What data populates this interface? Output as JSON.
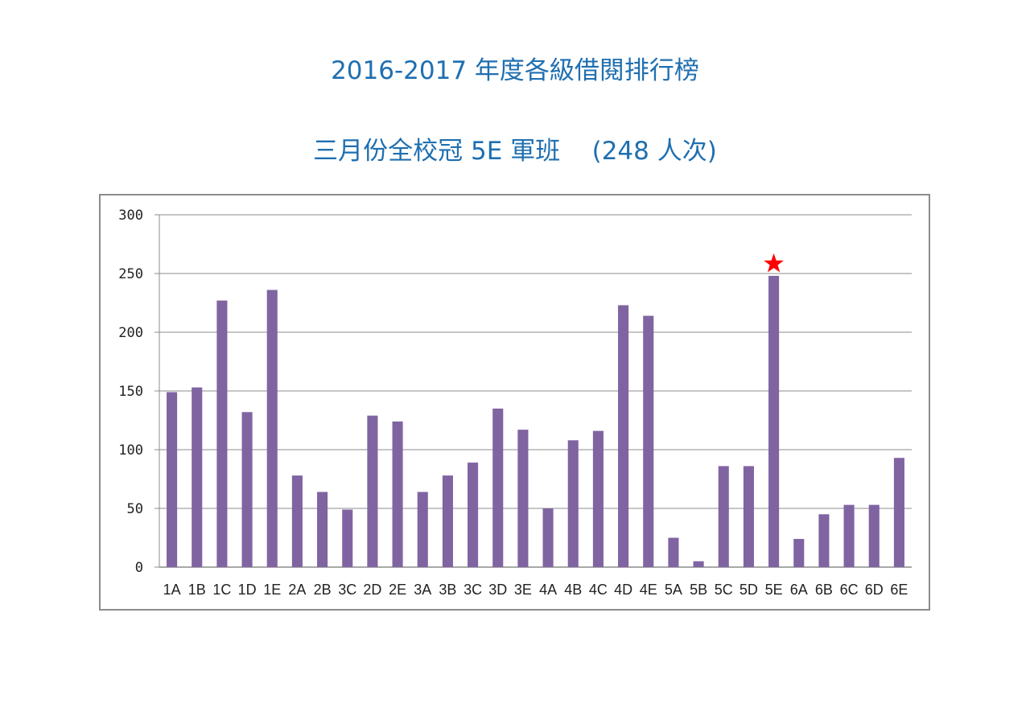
{
  "page": {
    "title": "2016-2017 年度各級借閱排行榜",
    "subtitle": "三月份全校冠 5E 軍班    (248 人次)",
    "title_color": "#1f6fb0"
  },
  "chart_data": {
    "type": "bar",
    "title": "",
    "xlabel": "",
    "ylabel": "",
    "ylim": [
      0,
      300
    ],
    "yticks": [
      0,
      50,
      100,
      150,
      200,
      250,
      300
    ],
    "grid": true,
    "legend": "none",
    "bar_color": "#8064a2",
    "grid_color": "#8c8c8c",
    "highlight": {
      "category": "5E",
      "marker": "star-icon",
      "color": "#ff0000"
    },
    "categories": [
      "1A",
      "1B",
      "1C",
      "1D",
      "1E",
      "2A",
      "2B",
      "3C",
      "2D",
      "2E",
      "3A",
      "3B",
      "3C",
      "3D",
      "3E",
      "4A",
      "4B",
      "4C",
      "4D",
      "4E",
      "5A",
      "5B",
      "5C",
      "5D",
      "5E",
      "6A",
      "6B",
      "6C",
      "6D",
      "6E"
    ],
    "values": [
      149,
      153,
      227,
      132,
      236,
      78,
      64,
      49,
      129,
      124,
      64,
      78,
      89,
      135,
      117,
      50,
      108,
      116,
      223,
      214,
      25,
      5,
      86,
      86,
      248,
      24,
      45,
      53,
      53,
      93
    ]
  }
}
